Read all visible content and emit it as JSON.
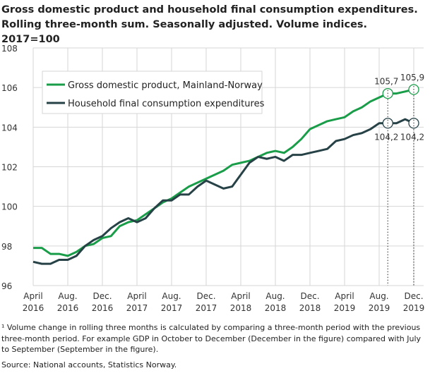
{
  "chart_data": {
    "type": "line",
    "title": "Gross domestic product and household final consumption expenditures. Rolling three-month sum. Seasonally adjusted. Volume indices. 2017=100",
    "ylim": [
      96,
      108
    ],
    "yticks": [
      "96",
      "98",
      "100",
      "102",
      "104",
      "106",
      "108"
    ],
    "xtick_labels": [
      [
        "April",
        "2016"
      ],
      [
        "Aug.",
        "2016"
      ],
      [
        "Dec.",
        "2016"
      ],
      [
        "April",
        "2017"
      ],
      [
        "Aug.",
        "2017"
      ],
      [
        "Dec.",
        "2017"
      ],
      [
        "April",
        "2018"
      ],
      [
        "Aug.",
        "2018"
      ],
      [
        "Dec.",
        "2018"
      ],
      [
        "April",
        "2019"
      ],
      [
        "Aug.",
        "2019"
      ],
      [
        "Dec.",
        "2019"
      ]
    ],
    "x": [
      "2016-04",
      "2016-05",
      "2016-06",
      "2016-07",
      "2016-08",
      "2016-09",
      "2016-10",
      "2016-11",
      "2016-12",
      "2017-01",
      "2017-02",
      "2017-03",
      "2017-04",
      "2017-05",
      "2017-06",
      "2017-07",
      "2017-08",
      "2017-09",
      "2017-10",
      "2017-11",
      "2017-12",
      "2018-01",
      "2018-02",
      "2018-03",
      "2018-04",
      "2018-05",
      "2018-06",
      "2018-07",
      "2018-08",
      "2018-09",
      "2018-10",
      "2018-11",
      "2018-12",
      "2019-01",
      "2019-02",
      "2019-03",
      "2019-04",
      "2019-05",
      "2019-06",
      "2019-07",
      "2019-08",
      "2019-09",
      "2019-10",
      "2019-11",
      "2019-12"
    ],
    "grid": true,
    "legend": "top-left",
    "series": [
      {
        "name": "Gross domestic product, Mainland-Norway",
        "color": "#1a9d49",
        "values": [
          97.9,
          97.9,
          97.6,
          97.6,
          97.5,
          97.7,
          98.0,
          98.1,
          98.4,
          98.5,
          99.0,
          99.2,
          99.3,
          99.6,
          99.9,
          100.2,
          100.4,
          100.7,
          101.0,
          101.2,
          101.4,
          101.6,
          101.8,
          102.1,
          102.2,
          102.3,
          102.5,
          102.7,
          102.8,
          102.7,
          103.0,
          103.4,
          103.9,
          104.1,
          104.3,
          104.4,
          104.5,
          104.8,
          105.0,
          105.3,
          105.5,
          105.7,
          105.7,
          105.8,
          105.9
        ]
      },
      {
        "name": "Household final consumption expenditures",
        "color": "#274247",
        "values": [
          97.2,
          97.1,
          97.1,
          97.3,
          97.3,
          97.5,
          98.0,
          98.3,
          98.5,
          98.9,
          99.2,
          99.4,
          99.2,
          99.4,
          99.9,
          100.3,
          100.3,
          100.6,
          100.6,
          101.0,
          101.3,
          101.1,
          100.9,
          101.0,
          101.6,
          102.2,
          102.5,
          102.4,
          102.5,
          102.3,
          102.6,
          102.6,
          102.7,
          102.8,
          102.9,
          103.3,
          103.4,
          103.6,
          103.7,
          103.9,
          104.2,
          104.2,
          104.2,
          104.4,
          104.2
        ]
      }
    ],
    "annotations": [
      {
        "x": "2019-09",
        "series": 0,
        "label": "105,7"
      },
      {
        "x": "2019-12",
        "series": 0,
        "label": "105,9"
      },
      {
        "x": "2019-09",
        "series": 1,
        "label": "104,2"
      },
      {
        "x": "2019-12",
        "series": 1,
        "label": "104,2"
      }
    ]
  },
  "footnote": "¹ Volume change in rolling three months is calculated by comparing a three-month period with the previous three-month period. For example GDP in October to December (December in the figure) compared with July to September (September in the figure).",
  "source": "Source: National accounts, Statistics Norway."
}
